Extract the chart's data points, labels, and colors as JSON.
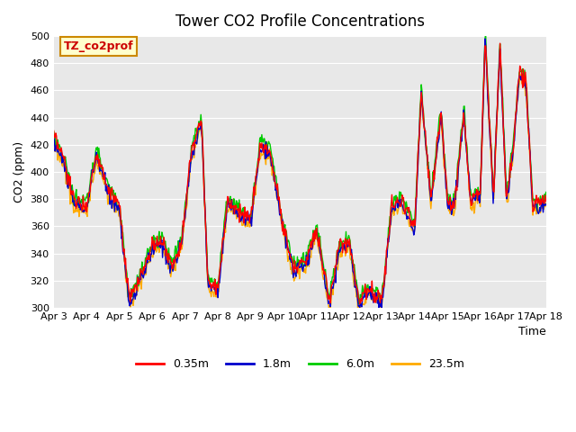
{
  "title": "Tower CO2 Profile Concentrations",
  "xlabel": "Time",
  "ylabel": "CO2 (ppm)",
  "ylim": [
    300,
    500
  ],
  "yticks": [
    300,
    320,
    340,
    360,
    380,
    400,
    420,
    440,
    460,
    480,
    500
  ],
  "annotation_text": "TZ_co2prof",
  "annotation_color": "#cc0000",
  "annotation_bg": "#ffffcc",
  "annotation_border": "#cc8800",
  "series_colors": [
    "#ff0000",
    "#0000cc",
    "#00cc00",
    "#ffaa00"
  ],
  "series_labels": [
    "0.35m",
    "1.8m",
    "6.0m",
    "23.5m"
  ],
  "xtick_labels": [
    "Apr 3",
    "Apr 4",
    "Apr 5",
    "Apr 6",
    "Apr 7",
    "Apr 8",
    "Apr 9",
    "Apr 10",
    "Apr 11",
    "Apr 12",
    "Apr 13",
    "Apr 14",
    "Apr 15",
    "Apr 16",
    "Apr 17",
    "Apr 18"
  ],
  "plot_bg": "#e8e8e8",
  "line_width": 1.0
}
